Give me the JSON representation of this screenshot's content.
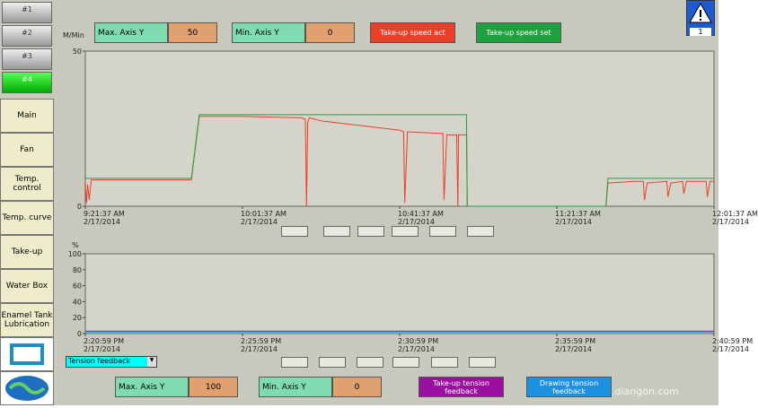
{
  "nav": {
    "tabs": [
      "#1",
      "#2",
      "#3",
      "#4"
    ],
    "buttons": [
      "Main",
      "Fan",
      "Temp. control",
      "Temp. curve",
      "Take-up",
      "Water Box",
      "Enamel Tank Lubrication"
    ]
  },
  "alarm_count": 1,
  "trend_select": "Tension feedback",
  "watermark": "www.diangon.com",
  "chart_data": [
    {
      "type": "line",
      "y_label": "M/Min",
      "axis_controls": {
        "max_label": "Max. Axis Y",
        "max": 50,
        "min_label": "Min. Axis Y",
        "min": 0
      },
      "xlim": [
        0,
        160
      ],
      "xticks": [
        {
          "value": 0,
          "label": "9:21:37 AM\n2/17/2014"
        },
        {
          "value": 40,
          "label": "10:01:37 AM\n2/17/2014"
        },
        {
          "value": 80,
          "label": "10:41:37 AM\n2/17/2014"
        },
        {
          "value": 120,
          "label": "11:21:37 AM\n2/17/2014"
        },
        {
          "value": 160,
          "label": "12:01:37 AM\n2/17/2014"
        }
      ],
      "ylim": [
        0,
        50
      ],
      "yticks": [
        0,
        50
      ],
      "series": [
        {
          "name": "Take-up speed act",
          "color": "#e8402a",
          "x": [
            0,
            0.3,
            0.6,
            1,
            1.5,
            27,
            29,
            40,
            55,
            56,
            56.3,
            56.6,
            57,
            60,
            70,
            80,
            81,
            81.3,
            82,
            90,
            91,
            91.3,
            92,
            94.5,
            94.8,
            95,
            97,
            97.2,
            132.5,
            133,
            140,
            142,
            142.3,
            143,
            148,
            148.3,
            149,
            152,
            152.3,
            153,
            158,
            158.3,
            159,
            160
          ],
          "values": [
            8,
            1,
            7,
            2,
            8.5,
            8.5,
            29,
            29,
            28.5,
            28,
            0,
            27,
            28.5,
            27.5,
            26,
            24.5,
            24,
            1,
            24,
            23.5,
            23.5,
            2,
            23,
            23,
            0,
            23,
            23,
            0,
            0,
            7.5,
            8,
            8,
            2,
            7.5,
            8,
            3,
            7.5,
            8,
            4,
            8,
            8,
            3,
            8,
            8
          ]
        },
        {
          "name": "Take-up speed set",
          "color": "#20a040",
          "x": [
            0,
            27,
            29,
            97,
            97.2,
            132.5,
            133,
            160
          ],
          "values": [
            9,
            9,
            29.5,
            29.5,
            0,
            0,
            9,
            9
          ]
        }
      ]
    },
    {
      "type": "line",
      "y_label": "%",
      "axis_controls": {
        "max_label": "Max. Axis Y",
        "max": 100,
        "min_label": "Min. Axis Y",
        "min": 0
      },
      "xlim": [
        0,
        20
      ],
      "xticks": [
        {
          "value": 0,
          "label": "2:20:59 PM\n2/17/2014"
        },
        {
          "value": 5,
          "label": "2:25:59 PM\n2/17/2014"
        },
        {
          "value": 10,
          "label": "2:30:59 PM\n2/17/2014"
        },
        {
          "value": 15,
          "label": "2:35:59 PM\n2/17/2014"
        },
        {
          "value": 20,
          "label": "2:40:59 PM\n2/17/2014"
        }
      ],
      "ylim": [
        0,
        100
      ],
      "yticks": [
        0,
        20,
        40,
        60,
        80,
        100
      ],
      "series": [
        {
          "name": "Take-up tension feedback",
          "color": "#9b10a0",
          "x": [
            0,
            20
          ],
          "values": [
            3,
            3
          ]
        },
        {
          "name": "Drawing tension feedback",
          "color": "#1e90e0",
          "x": [
            0,
            20
          ],
          "values": [
            2,
            2
          ]
        }
      ]
    }
  ]
}
